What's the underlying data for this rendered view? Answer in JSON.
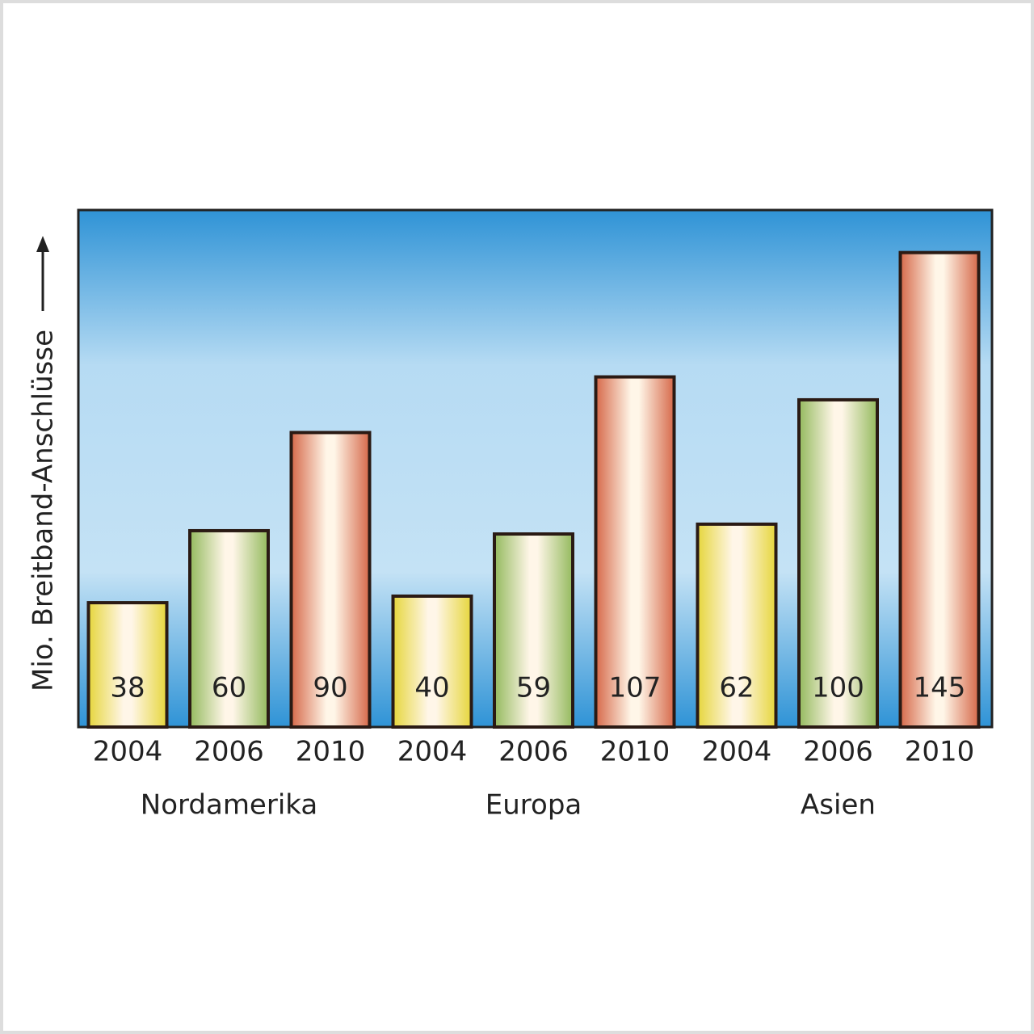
{
  "chart_data": {
    "type": "bar",
    "y_label": "Mio. Breitband-Anschlüsse",
    "categories": [
      "Nordamerika",
      "Europa",
      "Asien"
    ],
    "series": [
      {
        "name": "2004",
        "color": "#e6d63c",
        "values": [
          38,
          40,
          62
        ]
      },
      {
        "name": "2006",
        "color": "#94ba5e",
        "values": [
          60,
          59,
          100
        ]
      },
      {
        "name": "2010",
        "color": "#d6694a",
        "values": [
          90,
          107,
          145
        ]
      }
    ],
    "ylim": [
      0,
      158
    ]
  }
}
